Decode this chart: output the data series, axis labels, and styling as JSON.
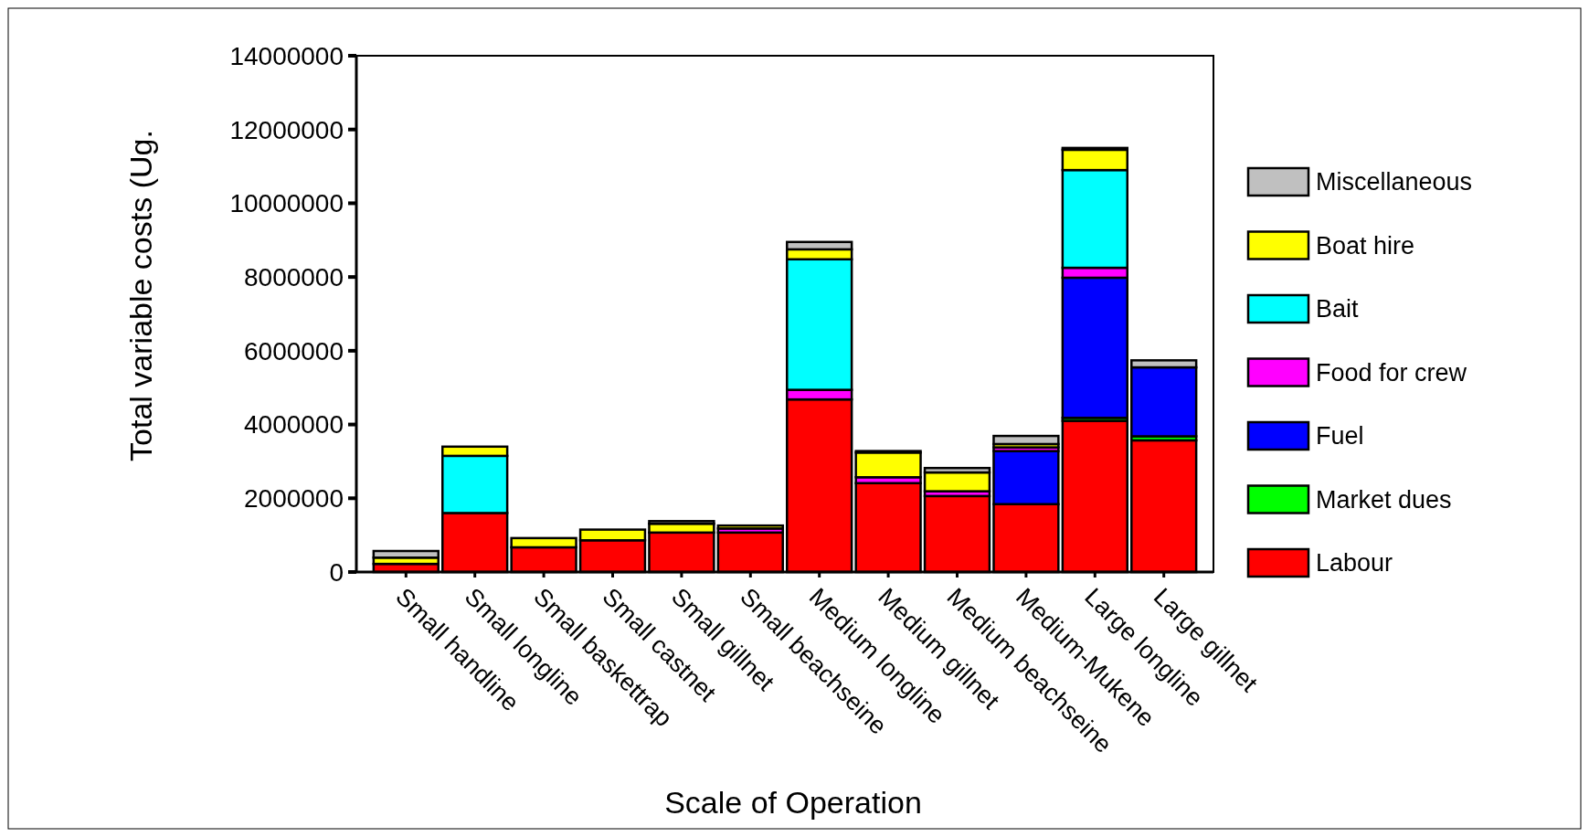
{
  "chart_data": {
    "type": "bar",
    "stacked": true,
    "xlabel": "Scale of Operation",
    "ylabel": "Total variable costs (Ug.",
    "categories": [
      "Small handline",
      "Small longline",
      "Small baskettrap",
      "Small castnet",
      "Small gillnet",
      "Small beachseine",
      "Medium longline",
      "Medium gillnet",
      "Medium beachseine",
      "Medium-Mukene",
      "Large longline",
      "Large gillnet"
    ],
    "series": [
      {
        "name": "Labour",
        "color": "#ff0000",
        "values": [
          220000,
          1600000,
          670000,
          860000,
          1070000,
          1070000,
          4680000,
          2410000,
          2060000,
          1840000,
          4100000,
          3570000
        ]
      },
      {
        "name": "Market dues",
        "color": "#00ff00",
        "values": [
          null,
          null,
          null,
          null,
          null,
          null,
          null,
          null,
          null,
          null,
          80000,
          110000
        ]
      },
      {
        "name": "Fuel",
        "color": "#0000ff",
        "values": [
          null,
          null,
          null,
          null,
          null,
          null,
          null,
          null,
          null,
          1440000,
          3800000,
          1870000
        ]
      },
      {
        "name": "Food for crew",
        "color": "#ff00ff",
        "values": [
          null,
          null,
          null,
          null,
          null,
          110000,
          260000,
          160000,
          130000,
          100000,
          270000,
          null
        ]
      },
      {
        "name": "Bait",
        "color": "#00ffff",
        "values": [
          null,
          1550000,
          null,
          null,
          null,
          null,
          3540000,
          null,
          null,
          null,
          2650000,
          null
        ]
      },
      {
        "name": "Boat hire",
        "color": "#ffff00",
        "values": [
          170000,
          250000,
          250000,
          290000,
          240000,
          80000,
          270000,
          670000,
          510000,
          90000,
          550000,
          null
        ]
      },
      {
        "name": "Miscellaneous",
        "color": "#c0c0c0",
        "values": [
          180000,
          null,
          null,
          null,
          70000,
          null,
          200000,
          40000,
          120000,
          220000,
          50000,
          190000
        ]
      }
    ],
    "ylim": [
      0,
      14000000
    ],
    "yticks": [
      0,
      2000000,
      4000000,
      6000000,
      8000000,
      10000000,
      12000000,
      14000000
    ],
    "grid": false,
    "legend": "right"
  }
}
